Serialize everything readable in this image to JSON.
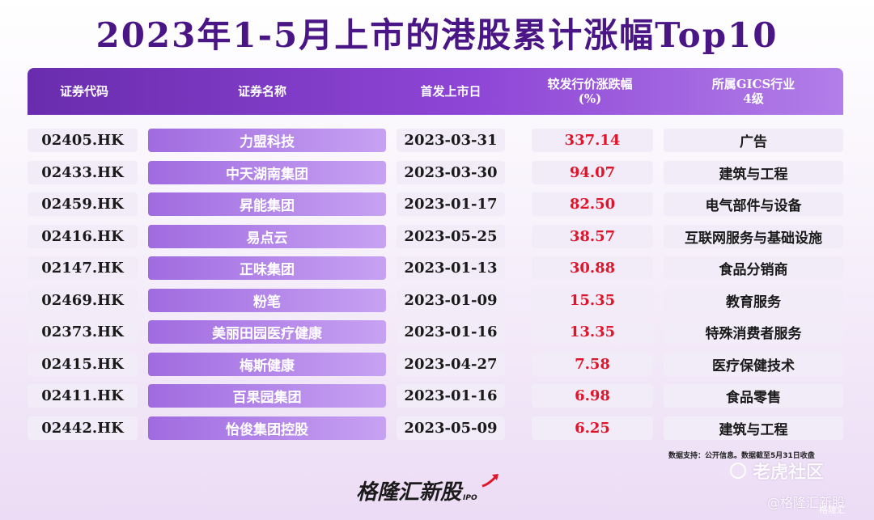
{
  "title": "2023年1-5月上市的港股累计涨幅Top10",
  "header": {
    "code": "证券代码",
    "name": "证券名称",
    "date": "首发上市日",
    "gain_line1": "较发行价涨跌幅",
    "gain_line2": "(%)",
    "industry_line1": "所属GICS行业",
    "industry_line2": "4级"
  },
  "chart_data": {
    "type": "table",
    "columns": [
      "证券代码",
      "证券名称",
      "首发上市日",
      "较发行价涨跌幅(%)",
      "所属GICS行业4级"
    ],
    "rows": [
      {
        "code": "02405.HK",
        "name": "力盟科技",
        "date": "2023-03-31",
        "gain": "337.14",
        "industry": "广告"
      },
      {
        "code": "02433.HK",
        "name": "中天湖南集团",
        "date": "2023-03-30",
        "gain": "94.07",
        "industry": "建筑与工程"
      },
      {
        "code": "02459.HK",
        "name": "昇能集团",
        "date": "2023-01-17",
        "gain": "82.50",
        "industry": "电气部件与设备"
      },
      {
        "code": "02416.HK",
        "name": "易点云",
        "date": "2023-05-25",
        "gain": "38.57",
        "industry": "互联网服务与基础设施"
      },
      {
        "code": "02147.HK",
        "name": "正味集团",
        "date": "2023-01-13",
        "gain": "30.88",
        "industry": "食品分销商"
      },
      {
        "code": "02469.HK",
        "name": "粉笔",
        "date": "2023-01-09",
        "gain": "15.35",
        "industry": "教育服务"
      },
      {
        "code": "02373.HK",
        "name": "美丽田园医疗健康",
        "date": "2023-01-16",
        "gain": "13.35",
        "industry": "特殊消费者服务"
      },
      {
        "code": "02415.HK",
        "name": "梅斯健康",
        "date": "2023-04-27",
        "gain": "7.58",
        "industry": "医疗保健技术"
      },
      {
        "code": "02411.HK",
        "name": "百果园集团",
        "date": "2023-01-16",
        "gain": "6.98",
        "industry": "食品零售"
      },
      {
        "code": "02442.HK",
        "name": "怡俊集团控股",
        "date": "2023-05-09",
        "gain": "6.25",
        "industry": "建筑与工程"
      }
    ]
  },
  "source": "数据支持：公开信息。数据截至5月31日收盘",
  "brand": {
    "name": "格隆汇新股",
    "tag": "IPO"
  },
  "watermarks": {
    "community": "老虎社区",
    "handle": "@格隆汇新股",
    "small": "格隆汇"
  },
  "colors": {
    "title": "#4a1585",
    "header": "#7b35c4",
    "gain": "#e0142a",
    "name_cell": "#b184ea"
  }
}
